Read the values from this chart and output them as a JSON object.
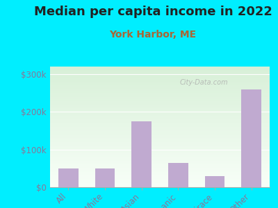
{
  "title": "Median per capita income in 2022",
  "subtitle": "York Harbor, ME",
  "categories": [
    "All",
    "White",
    "Asian",
    "Hispanic",
    "Multirace",
    "Other"
  ],
  "values": [
    50000,
    50000,
    175000,
    65000,
    30000,
    260000
  ],
  "bar_color": "#c0aad0",
  "background_outer": "#00eeff",
  "background_inner_top": "#d8f0d8",
  "background_inner_bottom": "#f8fff8",
  "title_color": "#222222",
  "subtitle_color": "#aa6633",
  "axis_label_color": "#887799",
  "ytick_labels": [
    "$0",
    "$100k",
    "$200k",
    "$300k"
  ],
  "ytick_values": [
    0,
    100000,
    200000,
    300000
  ],
  "ylim": [
    0,
    320000
  ],
  "watermark": "City-Data.com",
  "title_fontsize": 13,
  "subtitle_fontsize": 10,
  "tick_fontsize": 8.5
}
